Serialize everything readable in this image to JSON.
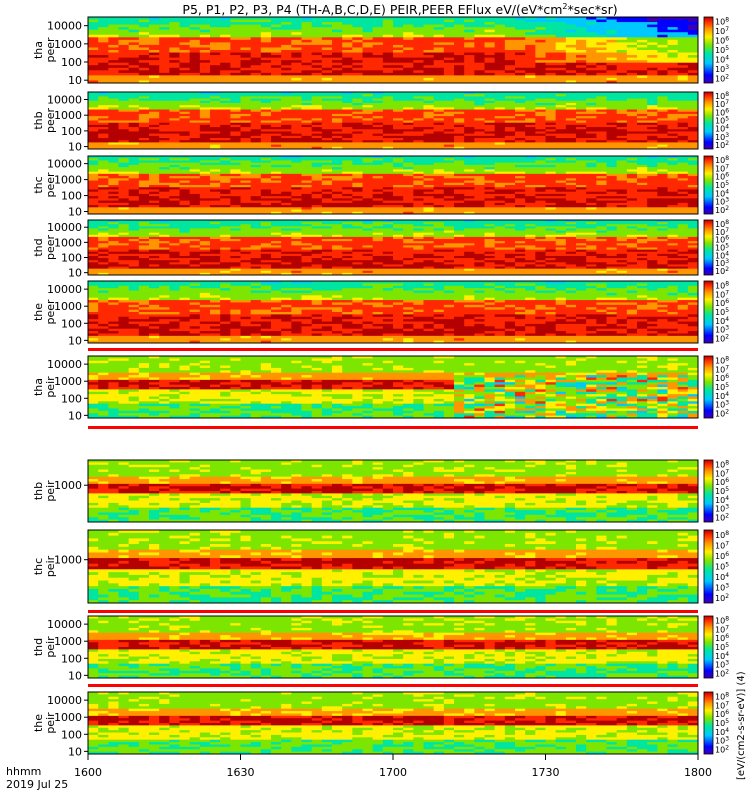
{
  "title_html": "P5, P1, P2, P3, P4 (TH-A,B,C,D,E) PEIR,PEER EFlux eV/(eV*cm",
  "title_sup": "2",
  "title_tail": "*sec*sr)",
  "time_axis": {
    "label_line1": "hhmm",
    "label_line2": "2019 Jul 25",
    "ticks": [
      "1600",
      "1630",
      "1700",
      "1730",
      "1800"
    ]
  },
  "colorbar_unit_label": "[eV/(cm2-s-sr-eV)] (4)",
  "colors": {
    "background": "#ffffff",
    "text": "#000000",
    "flag_red": "#ff0000"
  },
  "chart_data": {
    "type": "heatmap",
    "title": "P5, P1, P2, P3, P4 (TH-A,B,C,D,E) PEIR,PEER EFlux eV/(eV*cm^2*sec*sr)",
    "x_range": [
      "16:00",
      "18:00"
    ],
    "x_ticks": [
      "1600",
      "1630",
      "1700",
      "1730",
      "1800"
    ],
    "y_scale": "log",
    "colorbar_scale": "log",
    "panels": [
      {
        "probe": "tha",
        "product": "peer",
        "ylabel": "tha peer",
        "ylim": [
          7,
          30000
        ],
        "yticks": [
          "10",
          "100",
          "1000",
          "10000"
        ],
        "cb_ticks": [
          "10^2",
          "10^3",
          "10^4",
          "10^5",
          "10^6",
          "10^7",
          "10^8"
        ]
      },
      {
        "probe": "thb",
        "product": "peer",
        "ylabel": "thb peer",
        "ylim": [
          7,
          30000
        ],
        "yticks": [
          "10",
          "100",
          "1000",
          "10000"
        ],
        "cb_ticks": [
          "10^2",
          "10^3",
          "10^4",
          "10^5",
          "10^6",
          "10^7",
          "10^8"
        ]
      },
      {
        "probe": "thc",
        "product": "peer",
        "ylabel": "thc peer",
        "ylim": [
          7,
          30000
        ],
        "yticks": [
          "10",
          "100",
          "1000",
          "10000"
        ],
        "cb_ticks": [
          "10^2",
          "10^3",
          "10^4",
          "10^5",
          "10^6",
          "10^7",
          "10^8"
        ]
      },
      {
        "probe": "thd",
        "product": "peer",
        "ylabel": "thd peer",
        "ylim": [
          7,
          30000
        ],
        "yticks": [
          "10",
          "100",
          "1000",
          "10000"
        ],
        "cb_ticks": [
          "10^2",
          "10^3",
          "10^4",
          "10^5",
          "10^6",
          "10^7",
          "10^8"
        ]
      },
      {
        "probe": "the",
        "product": "peer",
        "ylabel": "the peer",
        "ylim": [
          7,
          30000
        ],
        "yticks": [
          "10",
          "100",
          "1000",
          "10000"
        ],
        "cb_ticks": [
          "10^2",
          "10^3",
          "10^4",
          "10^5",
          "10^6",
          "10^7",
          "10^8"
        ]
      },
      {
        "probe": "tha",
        "product": "peir",
        "ylabel": "tha peir",
        "ylim": [
          7,
          30000
        ],
        "yticks": [
          "10",
          "100",
          "1000",
          "10000"
        ],
        "cb_ticks": [
          "10^2",
          "10^3",
          "10^4",
          "10^5",
          "10^6",
          "10^7",
          "10^8"
        ]
      },
      {
        "probe": "thb",
        "product": "peir",
        "ylabel": "thb peir",
        "ylim": [
          7,
          30000
        ],
        "yticks": [
          "1000"
        ],
        "cb_ticks": [
          "10^2",
          "10^3",
          "10^4",
          "10^5",
          "10^6",
          "10^7",
          "10^8"
        ]
      },
      {
        "probe": "thc",
        "product": "peir",
        "ylabel": "thc peir",
        "ylim": [
          7,
          30000
        ],
        "yticks": [
          "1000"
        ],
        "cb_ticks": [
          "10^2",
          "10^3",
          "10^4",
          "10^5",
          "10^6",
          "10^7",
          "10^8"
        ]
      },
      {
        "probe": "thd",
        "product": "peir",
        "ylabel": "thd peir",
        "ylim": [
          7,
          30000
        ],
        "yticks": [
          "10",
          "100",
          "1000",
          "10000"
        ],
        "cb_ticks": [
          "10^2",
          "10^3",
          "10^4",
          "10^5",
          "10^6",
          "10^7",
          "10^8"
        ]
      },
      {
        "probe": "the",
        "product": "peir",
        "ylabel": "the peir",
        "ylim": [
          7,
          30000
        ],
        "yticks": [
          "10",
          "100",
          "1000",
          "10000"
        ],
        "cb_ticks": [
          "10^2",
          "10^3",
          "10^4",
          "10^5",
          "10^6",
          "10^7",
          "10^8"
        ]
      }
    ]
  }
}
